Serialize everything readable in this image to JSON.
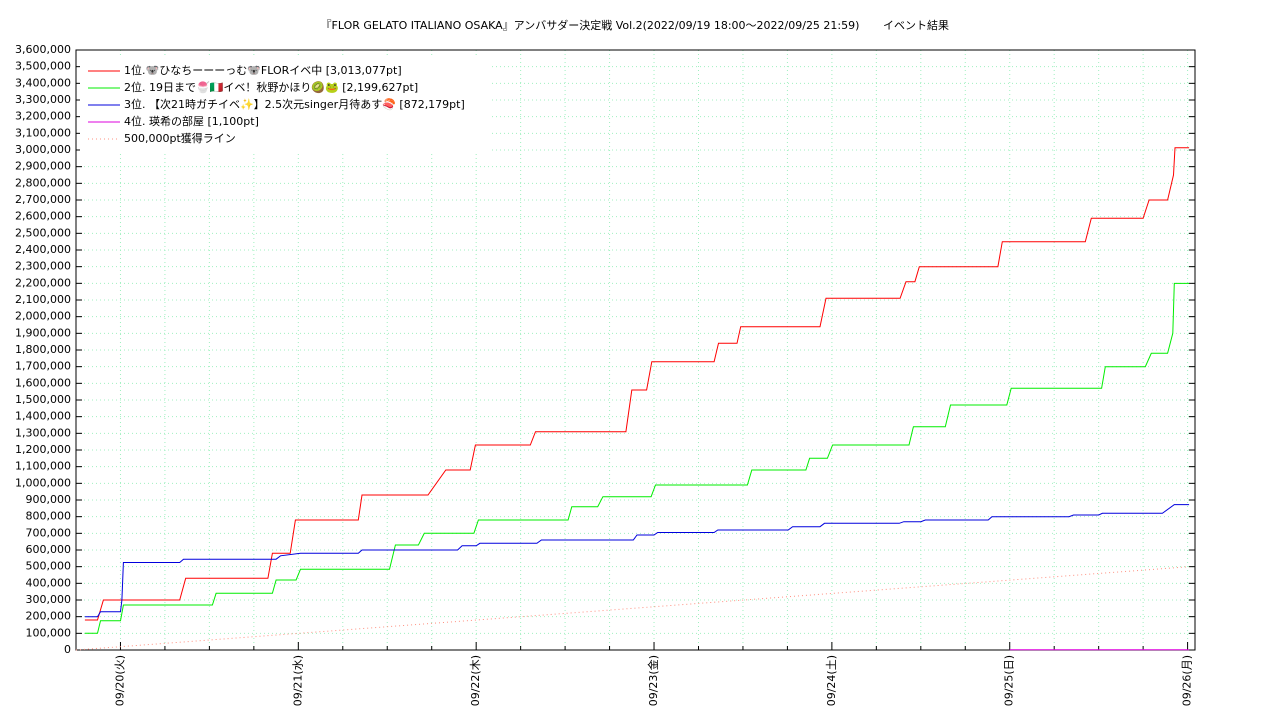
{
  "chart_data": {
    "type": "line",
    "title": "『FLOR GELATO ITALIANO OSAKA』アンバサダー決定戦 Vol.2(2022/09/19 18:00～2022/09/25 21:59)",
    "subtitle": "イベント結果",
    "xlim": [
      0,
      151
    ],
    "xticks": [
      {
        "value": 6,
        "label": "09/20(火)"
      },
      {
        "value": 30,
        "label": "09/21(水)"
      },
      {
        "value": 54,
        "label": "09/22(木)"
      },
      {
        "value": 78,
        "label": "09/23(金)"
      },
      {
        "value": 102,
        "label": "09/24(土)"
      },
      {
        "value": 126,
        "label": "09/25(日)"
      },
      {
        "value": 150,
        "label": "09/26(月)"
      }
    ],
    "xminorticks": [
      0,
      12,
      18,
      24,
      36,
      42,
      48,
      60,
      66,
      72,
      84,
      90,
      96,
      108,
      114,
      120,
      132,
      138,
      144
    ],
    "ylim": [
      0,
      3600000
    ],
    "yticks": [
      0,
      {
        "value": 100000,
        "label": "100,000"
      },
      {
        "value": 200000,
        "label": "200,000"
      },
      {
        "value": 300000,
        "label": "300,000"
      },
      {
        "value": 400000,
        "label": "400,000"
      },
      {
        "value": 500000,
        "label": "500,000"
      },
      {
        "value": 600000,
        "label": "600,000"
      },
      {
        "value": 700000,
        "label": "700,000"
      },
      {
        "value": 800000,
        "label": "800,000"
      },
      {
        "value": 900000,
        "label": "900,000"
      },
      {
        "value": 1000000,
        "label": "1,000,000"
      },
      {
        "value": 1100000,
        "label": "1,100,000"
      },
      {
        "value": 1200000,
        "label": "1,200,000"
      },
      {
        "value": 1300000,
        "label": "1,300,000"
      },
      {
        "value": 1400000,
        "label": "1,400,000"
      },
      {
        "value": 1500000,
        "label": "1,500,000"
      },
      {
        "value": 1600000,
        "label": "1,600,000"
      },
      {
        "value": 1700000,
        "label": "1,700,000"
      },
      {
        "value": 1800000,
        "label": "1,800,000"
      },
      {
        "value": 1900000,
        "label": "1,900,000"
      },
      {
        "value": 2000000,
        "label": "2,000,000"
      },
      {
        "value": 2100000,
        "label": "2,100,000"
      },
      {
        "value": 2200000,
        "label": "2,200,000"
      },
      {
        "value": 2300000,
        "label": "2,300,000"
      },
      {
        "value": 2400000,
        "label": "2,400,000"
      },
      {
        "value": 2500000,
        "label": "2,500,000"
      },
      {
        "value": 2600000,
        "label": "2,600,000"
      },
      {
        "value": 2700000,
        "label": "2,700,000"
      },
      {
        "value": 2800000,
        "label": "2,800,000"
      },
      {
        "value": 2900000,
        "label": "2,900,000"
      },
      {
        "value": 3000000,
        "label": "3,000,000"
      },
      {
        "value": 3100000,
        "label": "3,100,000"
      },
      {
        "value": 3200000,
        "label": "3,200,000"
      },
      {
        "value": 3300000,
        "label": "3,300,000"
      },
      {
        "value": 3400000,
        "label": "3,400,000"
      },
      {
        "value": 3500000,
        "label": "3,500,000"
      },
      {
        "value": 3600000,
        "label": "3,600,000"
      }
    ],
    "grid": true,
    "legend": "upper left",
    "series": [
      {
        "name": "1位.🐨ひなちーーーっむ🐨FLORイベ中 [3,013,077pt]",
        "color": "#ff0000",
        "x": [
          1.2,
          2.9,
          3.7,
          14.0,
          14.8,
          25.9,
          26.5,
          28.9,
          29.6,
          38.1,
          38.6,
          47.5,
          49.9,
          53.2,
          53.9,
          61.3,
          62.0,
          74.2,
          75.0,
          77.0,
          77.7,
          86.1,
          86.7,
          89.2,
          89.7,
          100.4,
          101.2,
          111.2,
          112.0,
          113.2,
          113.8,
          124.4,
          125.0,
          136.2,
          137.0,
          144.0,
          144.8,
          147.3,
          148.1,
          148.3,
          150.2
        ],
        "values": [
          180000,
          180000,
          300000,
          300000,
          430000,
          430000,
          580000,
          580000,
          780000,
          780000,
          930000,
          930000,
          1080000,
          1080000,
          1230000,
          1230000,
          1310000,
          1310000,
          1560000,
          1560000,
          1730000,
          1730000,
          1840000,
          1840000,
          1940000,
          1940000,
          2110000,
          2110000,
          2210000,
          2210000,
          2300000,
          2300000,
          2450000,
          2450000,
          2590000,
          2590000,
          2700000,
          2700000,
          2850000,
          3013077,
          3013077
        ]
      },
      {
        "name": "2位. 19日まで🍧🇮🇹イベ！秋野かほり🥝🐸 [2,199,627pt]",
        "color": "#00ee00",
        "x": [
          1.2,
          2.9,
          3.3,
          6.0,
          6.4,
          18.4,
          18.9,
          26.5,
          27.0,
          29.7,
          30.3,
          42.3,
          43.1,
          46.2,
          47.0,
          53.7,
          54.3,
          66.4,
          66.9,
          70.4,
          71.1,
          77.6,
          78.2,
          90.6,
          91.2,
          98.5,
          99.0,
          101.4,
          102.1,
          112.4,
          113.0,
          117.3,
          118.0,
          125.6,
          126.2,
          138.4,
          138.9,
          144.3,
          145.1,
          147.3,
          148.0,
          148.2,
          150.2
        ],
        "values": [
          100000,
          100000,
          175000,
          175000,
          270000,
          270000,
          340000,
          340000,
          420000,
          420000,
          485000,
          485000,
          630000,
          630000,
          700000,
          700000,
          780000,
          780000,
          860000,
          860000,
          920000,
          920000,
          990000,
          990000,
          1080000,
          1080000,
          1150000,
          1150000,
          1230000,
          1230000,
          1340000,
          1340000,
          1470000,
          1470000,
          1570000,
          1570000,
          1700000,
          1700000,
          1780000,
          1780000,
          1900000,
          2199627,
          2199627
        ]
      },
      {
        "name": "3位. 【次21時ガチイベ✨】2.5次元singer月待あす🍣 [872,179pt]",
        "color": "#0000dd",
        "x": [
          1.2,
          2.9,
          3.3,
          6.0,
          6.2,
          6.4,
          14.0,
          14.5,
          27.0,
          27.6,
          30.3,
          38.1,
          38.6,
          51.5,
          52.1,
          54.0,
          54.5,
          62.2,
          62.8,
          75.2,
          75.7,
          78.0,
          78.5,
          86.1,
          86.6,
          96.1,
          96.7,
          100.4,
          101.0,
          111.1,
          111.7,
          114.0,
          114.6,
          123.1,
          123.6,
          134.0,
          134.6,
          138.0,
          138.5,
          146.6,
          148.2,
          150.2
        ],
        "values": [
          200000,
          200000,
          230000,
          230000,
          300000,
          525000,
          525000,
          545000,
          545000,
          565000,
          580000,
          580000,
          600000,
          600000,
          625000,
          625000,
          640000,
          640000,
          660000,
          660000,
          690000,
          690000,
          705000,
          705000,
          720000,
          720000,
          740000,
          740000,
          760000,
          760000,
          770000,
          770000,
          780000,
          780000,
          800000,
          800000,
          810000,
          810000,
          820000,
          820000,
          872179,
          872179
        ]
      },
      {
        "name": "4位. 瑛希の部屋 [1,100pt]",
        "color": "#dd00dd",
        "x": [
          126.0,
          150.2
        ],
        "values": [
          1100,
          1100
        ]
      },
      {
        "name": "500,000pt獲得ライン",
        "color": "#ff9080",
        "line_style": "dotted",
        "x": [
          0,
          150.2
        ],
        "values": [
          0,
          500000
        ]
      }
    ]
  }
}
